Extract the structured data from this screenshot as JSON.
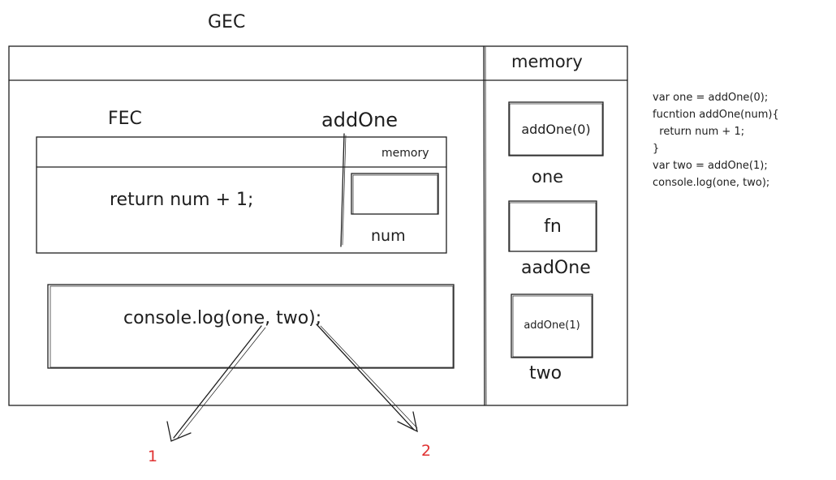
{
  "labels": {
    "gec_title": "GEC",
    "fec_title": "FEC",
    "fec_function_name": "addOne",
    "gec_memory_header": "memory",
    "fec_memory_header": "memory",
    "fec_code": "return num + 1;",
    "fec_var_num": "num",
    "gec_code": "console.log(one, two);",
    "output_1": "1",
    "output_2": "2"
  },
  "gec_memory": [
    {
      "value": "addOne(0)",
      "name": "one"
    },
    {
      "value": "fn",
      "name": "aadOne"
    },
    {
      "value": "addOne(1)",
      "name": "two"
    }
  ],
  "source_code": [
    "var one = addOne(0);",
    "fucntion addOne(num){",
    "  return num + 1;",
    "}",
    "var two = addOne(1);",
    "console.log(one, two);"
  ],
  "colors": {
    "stroke": "#1e1e1e",
    "output": "#e03131"
  }
}
